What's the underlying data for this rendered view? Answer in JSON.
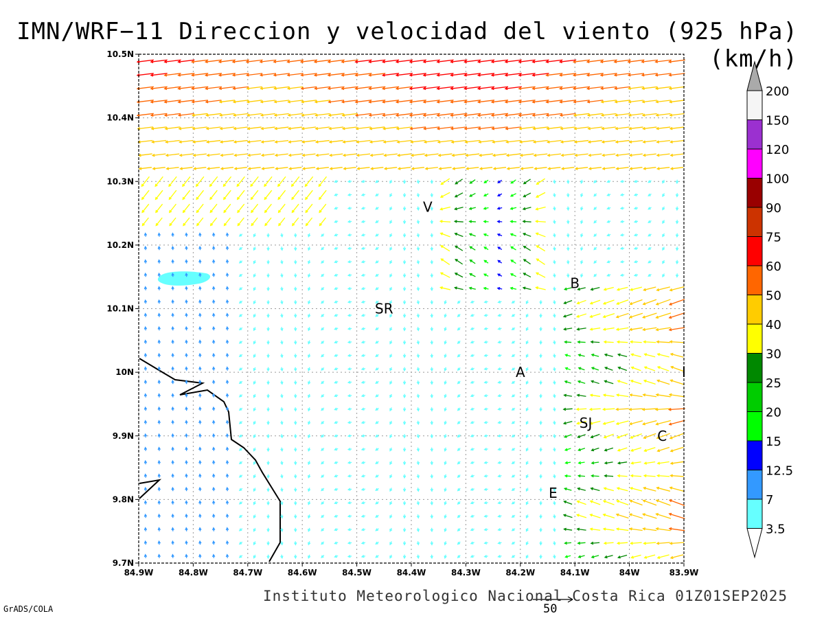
{
  "title": "IMN/WRF−11 Direccion y velocidad del viento (925 hPa)(km/h)",
  "footer": "Instituto Meteorologico Nacional Costa Rica 01Z01SEP2025",
  "software": "GrADS/COLA",
  "reference_vector": {
    "value_label": "50",
    "speed_kmh": 50
  },
  "axes": {
    "lat_labels": [
      "10.5N",
      "10.4N",
      "10.3N",
      "10.2N",
      "10.1N",
      "10N",
      "9.9N",
      "9.8N",
      "9.7N"
    ],
    "lat_values": [
      10.5,
      10.4,
      10.3,
      10.2,
      10.1,
      10.0,
      9.9,
      9.8,
      9.7
    ],
    "lon_labels": [
      "84.9W",
      "84.8W",
      "84.7W",
      "84.6W",
      "84.5W",
      "84.4W",
      "84.3W",
      "84.2W",
      "84.1W",
      "84W",
      "83.9W"
    ],
    "lon_values": [
      -84.9,
      -84.8,
      -84.7,
      -84.6,
      -84.5,
      -84.4,
      -84.3,
      -84.2,
      -84.1,
      -84.0,
      -83.9
    ],
    "lat_range": [
      9.7,
      10.5
    ],
    "lon_range": [
      -84.9,
      -83.9
    ],
    "grid": true
  },
  "cities": [
    {
      "label": "V",
      "lon": -84.37,
      "lat": 10.26
    },
    {
      "label": "B",
      "lon": -84.1,
      "lat": 10.14
    },
    {
      "label": "SR",
      "lon": -84.45,
      "lat": 10.1
    },
    {
      "label": "A",
      "lon": -84.2,
      "lat": 10.0
    },
    {
      "label": "SJ",
      "lon": -84.08,
      "lat": 9.92
    },
    {
      "label": "C",
      "lon": -83.94,
      "lat": 9.9
    },
    {
      "label": "E",
      "lon": -84.14,
      "lat": 9.81
    },
    {
      "label": "I",
      "lon": -83.9,
      "lat": 10.0
    }
  ],
  "colorbar": {
    "levels": [
      "200",
      "150",
      "120",
      "100",
      "90",
      "75",
      "60",
      "50",
      "40",
      "30",
      "25",
      "20",
      "15",
      "12.5",
      "7",
      "3.5"
    ],
    "colors": [
      "#f5f5f5",
      "#9b30d0",
      "#ff00ff",
      "#990000",
      "#cc3300",
      "#ff0000",
      "#ff6600",
      "#ffcc00",
      "#ffff00",
      "#008800",
      "#00cc00",
      "#00ff00",
      "#0000ff",
      "#3399ff",
      "#66ffff"
    ],
    "top_triangle_color": "#aaaaaa",
    "bottom_triangle_color": "#ffffff"
  },
  "lake_color": "#66ffff",
  "coast_color": "#000000"
}
